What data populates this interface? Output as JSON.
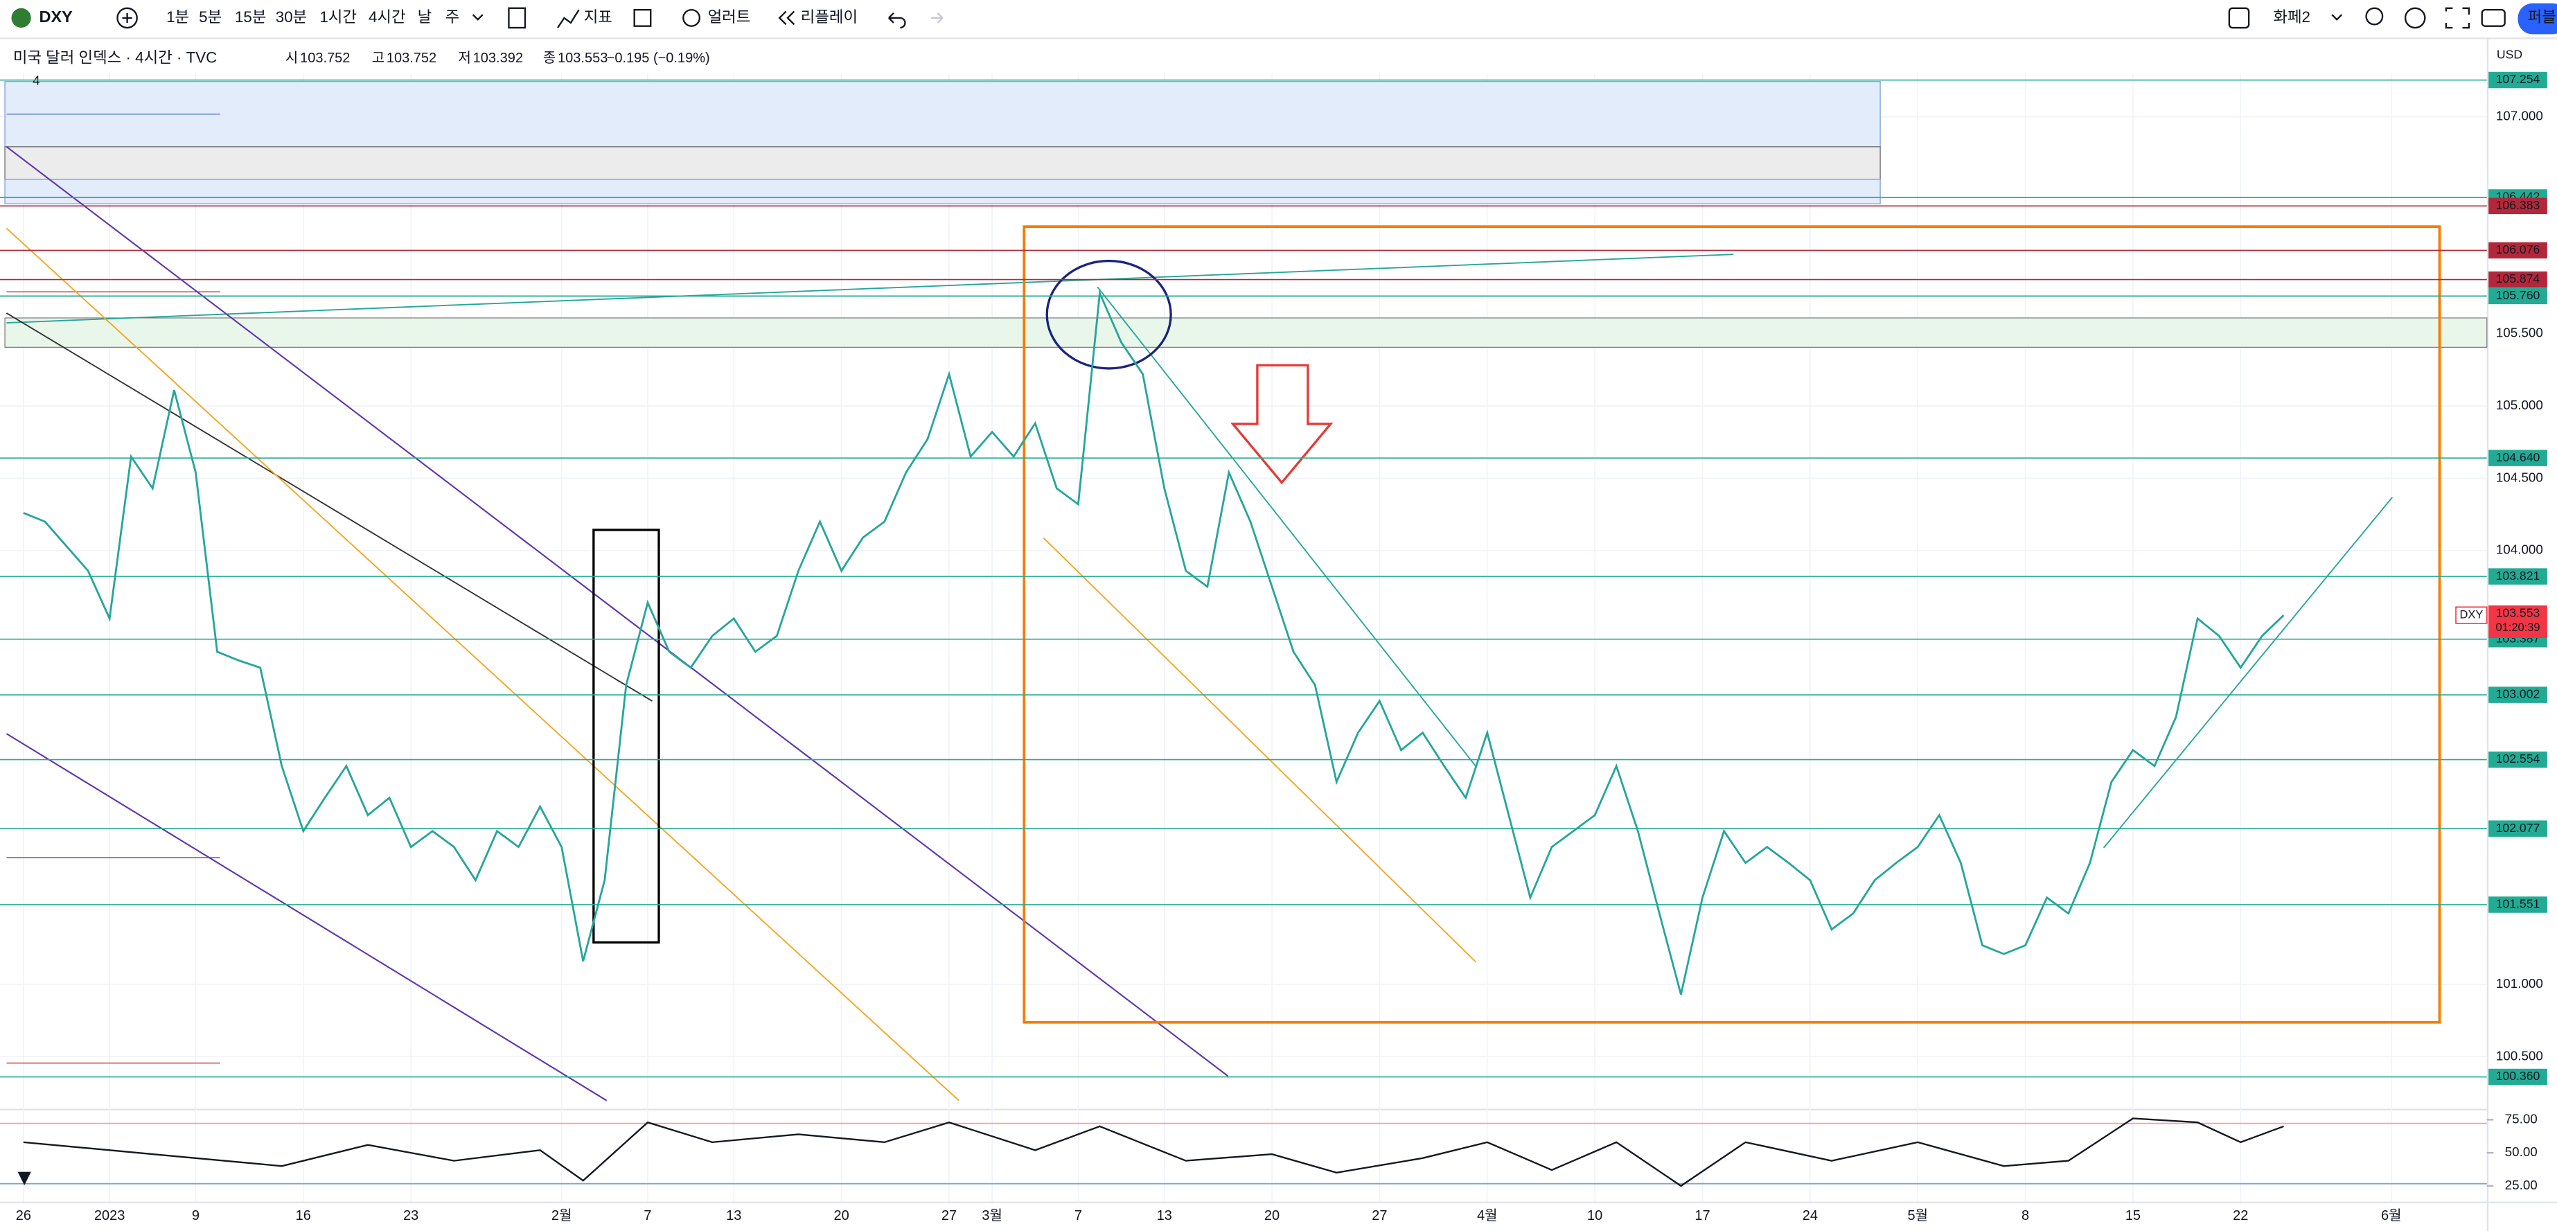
{
  "toolbar": {
    "symbol": "DXY",
    "intervals": [
      "1분",
      "5분",
      "15분",
      "30분",
      "1시간",
      "4시간",
      "날",
      "주"
    ],
    "active_interval": 5,
    "indicators": "지표",
    "alert": "얼러트",
    "replay": "리플레이",
    "layout": "화페2",
    "publish": "퍼블"
  },
  "legend": {
    "title": "미국 달러 인덱스 · 4시간 · TVC",
    "open_label": "시",
    "open": 103.752,
    "high_label": "고",
    "high": 103.752,
    "low_label": "저",
    "low": 103.392,
    "close_label": "종",
    "close": 103.553,
    "change": "−0.195 (−0.19%)",
    "collapse": "4"
  },
  "chart_data": {
    "type": "line",
    "currency": "USD",
    "symbol_tag": "DXY",
    "countdown": "01:20:39",
    "color": "#26a69a",
    "x": [
      2,
      3,
      4,
      5,
      6,
      7,
      8,
      9,
      10,
      11,
      12,
      13,
      14,
      15,
      16,
      17,
      18,
      19,
      20,
      21,
      22,
      23,
      24,
      25,
      26,
      27,
      28,
      29,
      30,
      31,
      32,
      33,
      34,
      35,
      36,
      37,
      38,
      39,
      40,
      41,
      42,
      43,
      44,
      45,
      46,
      47,
      48,
      49,
      50,
      51,
      52,
      53,
      54,
      55,
      56,
      57,
      58,
      59,
      60,
      61,
      62,
      63,
      64,
      65,
      66,
      67,
      68,
      69,
      70,
      71,
      72,
      73,
      74,
      75,
      76,
      77,
      78,
      79,
      80,
      81,
      82,
      83,
      84,
      85,
      86,
      87,
      88,
      89,
      90,
      91,
      92,
      93,
      94,
      95,
      96,
      97,
      98,
      99,
      100,
      101,
      102,
      103,
      104,
      105,
      106,
      107
    ],
    "values": [
      104.26,
      104.2,
      104.03,
      103.86,
      103.53,
      104.65,
      104.43,
      105.11,
      104.54,
      103.3,
      103.24,
      103.19,
      102.51,
      102.06,
      102.29,
      102.51,
      102.17,
      102.29,
      101.95,
      102.06,
      101.95,
      101.72,
      102.06,
      101.95,
      102.23,
      101.95,
      101.16,
      101.72,
      103.07,
      103.64,
      103.3,
      103.19,
      103.41,
      103.53,
      103.3,
      103.41,
      103.86,
      104.2,
      103.86,
      104.09,
      104.2,
      104.54,
      104.77,
      105.22,
      104.65,
      104.82,
      104.65,
      104.88,
      104.43,
      104.32,
      105.78,
      105.44,
      105.22,
      104.43,
      103.86,
      103.75,
      104.54,
      104.2,
      103.75,
      103.3,
      103.07,
      102.4,
      102.74,
      102.96,
      102.62,
      102.74,
      102.51,
      102.29,
      102.74,
      102.17,
      101.6,
      101.95,
      102.06,
      102.17,
      102.51,
      102.06,
      101.49,
      100.93,
      101.6,
      102.06,
      101.84,
      101.95,
      101.84,
      101.72,
      101.38,
      101.49,
      101.72,
      101.84,
      101.95,
      102.17,
      101.84,
      101.27,
      101.21,
      101.27,
      101.6,
      101.49,
      101.84,
      102.4,
      102.62,
      102.51,
      102.85,
      103.53,
      103.41,
      103.19,
      103.41,
      103.553
    ],
    "xlim": [
      0.91,
      116.44
    ],
    "xticks": [
      {
        "value": 2,
        "label": "26"
      },
      {
        "value": 6,
        "label": "2023"
      },
      {
        "value": 10,
        "label": "9"
      },
      {
        "value": 15,
        "label": "16"
      },
      {
        "value": 20,
        "label": "23"
      },
      {
        "value": 27,
        "label": "2월"
      },
      {
        "value": 31,
        "label": "7"
      },
      {
        "value": 35,
        "label": "13"
      },
      {
        "value": 40,
        "label": "20"
      },
      {
        "value": 45,
        "label": "27"
      },
      {
        "value": 47,
        "label": "3월"
      },
      {
        "value": 51,
        "label": "7"
      },
      {
        "value": 55,
        "label": "13"
      },
      {
        "value": 60,
        "label": "20"
      },
      {
        "value": 65,
        "label": "27"
      },
      {
        "value": 70,
        "label": "4월"
      },
      {
        "value": 75,
        "label": "10"
      },
      {
        "value": 80,
        "label": "17"
      },
      {
        "value": 85,
        "label": "24"
      },
      {
        "value": 90,
        "label": "5월"
      },
      {
        "value": 95,
        "label": "8"
      },
      {
        "value": 100,
        "label": "15"
      },
      {
        "value": 105,
        "label": "22"
      },
      {
        "value": 112,
        "label": "6월"
      }
    ],
    "ylim": [
      100.14,
      107.3
    ],
    "yticks": [
      {
        "value": 107,
        "label": "107.000"
      },
      {
        "value": 105.5,
        "label": "105.500"
      },
      {
        "value": 105,
        "label": "105.000"
      },
      {
        "value": 104.5,
        "label": "104.500"
      },
      {
        "value": 104,
        "label": "104.000"
      },
      {
        "value": 101,
        "label": "101.000"
      },
      {
        "value": 100.5,
        "label": "100.500"
      }
    ],
    "grid": true,
    "levels": [
      {
        "value": 107.254,
        "label": "107.254",
        "color": "#22ab94"
      },
      {
        "value": 106.442,
        "label": "106.442",
        "color": "#22ab94"
      },
      {
        "value": 106.383,
        "label": "106.383",
        "color": "#b2283a"
      },
      {
        "value": 106.076,
        "label": "106.076",
        "color": "#b2283a"
      },
      {
        "value": 105.874,
        "label": "105.874",
        "color": "#b2283a"
      },
      {
        "value": 105.76,
        "label": "105.760",
        "color": "#22ab94"
      },
      {
        "value": 104.64,
        "label": "104.640",
        "color": "#22ab94"
      },
      {
        "value": 103.821,
        "label": "103.821",
        "color": "#22ab94"
      },
      {
        "value": 103.387,
        "label": "103.387",
        "color": "#22ab94"
      },
      {
        "value": 103.002,
        "label": "103.002",
        "color": "#22ab94"
      },
      {
        "value": 102.554,
        "label": "102.554",
        "color": "#22ab94"
      },
      {
        "value": 102.077,
        "label": "102.077",
        "color": "#22ab94"
      },
      {
        "value": 101.551,
        "label": "101.551",
        "color": "#22ab94"
      },
      {
        "value": 100.36,
        "label": "100.360",
        "color": "#22ab94"
      }
    ],
    "rsi": {
      "color": "#131722",
      "x": [
        2,
        6,
        10,
        14,
        18,
        22,
        26,
        28,
        31,
        34,
        38,
        42,
        45,
        49,
        52,
        56,
        60,
        63,
        67,
        70,
        73,
        76,
        79,
        82,
        86,
        90,
        94,
        97,
        100,
        103,
        105,
        107
      ],
      "values": [
        58,
        52,
        46,
        40,
        56,
        44,
        52,
        29,
        73,
        58,
        64,
        58,
        73,
        52,
        70,
        44,
        49,
        35,
        46,
        58,
        37,
        58,
        25,
        58,
        44,
        58,
        40,
        44,
        76,
        73,
        58,
        70
      ],
      "ylim": [
        13.1,
        82.1
      ],
      "yticks": [
        {
          "value": 75,
          "label": "75.00"
        },
        {
          "value": 50,
          "label": "50.00"
        },
        {
          "value": 25,
          "label": "25.00"
        }
      ]
    }
  }
}
